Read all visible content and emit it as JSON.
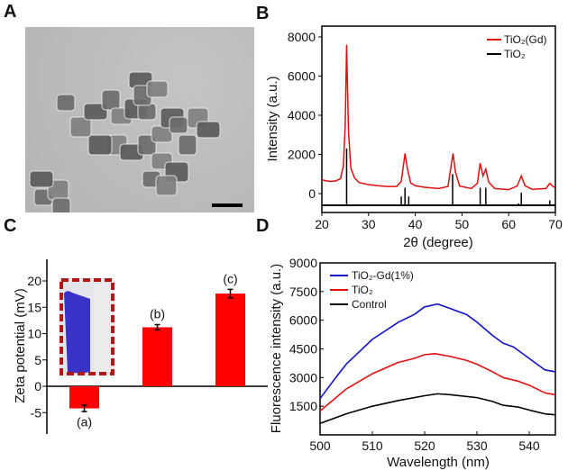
{
  "panels": {
    "a": "A",
    "b": "B",
    "c": "C",
    "d": "D"
  },
  "colors": {
    "red": "#e01010",
    "blue": "#1010c8",
    "black": "#000000",
    "bar": "#ff0000",
    "inset_border": "#b01818"
  },
  "chart_data": [
    {
      "panel": "A",
      "type": "image",
      "content": "TEM micrograph with scale bar"
    },
    {
      "panel": "B",
      "type": "line",
      "xlabel": "2θ (degree)",
      "ylabel": "Intensity (a.u.)",
      "xlim": [
        20,
        70
      ],
      "ylim": [
        -900,
        8800
      ],
      "xticks": [
        20,
        30,
        40,
        50,
        60,
        70
      ],
      "yticks": [
        0,
        2000,
        4000,
        6000,
        8000
      ],
      "legend": "top-right",
      "series": [
        {
          "name": "TiO₂(Gd)",
          "color": "#e01010",
          "points": [
            [
              20,
              700
            ],
            [
              21,
              650
            ],
            [
              22,
              620
            ],
            [
              23,
              650
            ],
            [
              24,
              760
            ],
            [
              24.6,
              1400
            ],
            [
              25,
              3500
            ],
            [
              25.3,
              7600
            ],
            [
              25.7,
              3200
            ],
            [
              26.2,
              1300
            ],
            [
              27,
              800
            ],
            [
              28,
              560
            ],
            [
              30,
              460
            ],
            [
              32,
              400
            ],
            [
              34,
              360
            ],
            [
              36,
              360
            ],
            [
              37,
              620
            ],
            [
              37.5,
              1500
            ],
            [
              37.8,
              2050
            ],
            [
              38.3,
              1300
            ],
            [
              39,
              550
            ],
            [
              40,
              400
            ],
            [
              42,
              320
            ],
            [
              45,
              260
            ],
            [
              47,
              360
            ],
            [
              47.6,
              1300
            ],
            [
              48.1,
              2050
            ],
            [
              48.6,
              1100
            ],
            [
              49.5,
              380
            ],
            [
              52,
              260
            ],
            [
              53.3,
              520
            ],
            [
              53.9,
              1550
            ],
            [
              54.5,
              900
            ],
            [
              55.1,
              1250
            ],
            [
              55.7,
              600
            ],
            [
              57,
              260
            ],
            [
              60,
              200
            ],
            [
              61.8,
              380
            ],
            [
              62.7,
              900
            ],
            [
              63.5,
              400
            ],
            [
              65,
              220
            ],
            [
              68,
              260
            ],
            [
              68.8,
              520
            ],
            [
              69.5,
              360
            ],
            [
              70,
              300
            ]
          ]
        },
        {
          "name": "TiO₂",
          "color": "#000000",
          "type": "stick",
          "baseline": -600,
          "sticks": [
            [
              25.3,
              2300
            ],
            [
              37.0,
              -150
            ],
            [
              37.8,
              300
            ],
            [
              38.6,
              -150
            ],
            [
              48.0,
              1000
            ],
            [
              53.9,
              300
            ],
            [
              55.1,
              300
            ],
            [
              62.1,
              -500
            ],
            [
              62.7,
              50
            ],
            [
              68.8,
              -350
            ]
          ]
        }
      ]
    },
    {
      "panel": "C",
      "type": "bar",
      "ylabel": "Zeta potential (mV)",
      "ylim": [
        -9,
        24
      ],
      "yticks": [
        -5,
        0,
        5,
        10,
        15,
        20
      ],
      "categories": [
        "(a)",
        "(b)",
        "(c)"
      ],
      "values": [
        -4.2,
        11.2,
        17.6
      ],
      "errors": [
        0.6,
        0.5,
        0.8
      ],
      "inset": "vial photograph"
    },
    {
      "panel": "D",
      "type": "line",
      "xlabel": "Wavelength (nm)",
      "ylabel": "Fluorescence intensity (a.u.)",
      "xlim": [
        500,
        545
      ],
      "ylim": [
        0,
        9000
      ],
      "xticks": [
        500,
        510,
        520,
        530,
        540
      ],
      "yticks": [
        1500,
        3000,
        4500,
        6000,
        7500,
        9000
      ],
      "legend": "top-left",
      "series": [
        {
          "name": "TiO₂-Gd(1%)",
          "color": "#1010c8",
          "points": [
            [
              500,
              1900
            ],
            [
              503,
              3000
            ],
            [
              505,
              3700
            ],
            [
              510,
              5000
            ],
            [
              515,
              5900
            ],
            [
              518,
              6300
            ],
            [
              520,
              6700
            ],
            [
              522.5,
              6850
            ],
            [
              525,
              6600
            ],
            [
              528,
              6300
            ],
            [
              530,
              5900
            ],
            [
              533,
              5200
            ],
            [
              535,
              4800
            ],
            [
              537,
              4600
            ],
            [
              540,
              4000
            ],
            [
              543,
              3400
            ],
            [
              545,
              3300
            ]
          ]
        },
        {
          "name": "TiO₂",
          "color": "#e01010",
          "points": [
            [
              500,
              1250
            ],
            [
              505,
              2400
            ],
            [
              510,
              3200
            ],
            [
              515,
              3800
            ],
            [
              518,
              4000
            ],
            [
              520,
              4200
            ],
            [
              522,
              4250
            ],
            [
              525,
              4100
            ],
            [
              528,
              3900
            ],
            [
              530,
              3700
            ],
            [
              533,
              3300
            ],
            [
              535,
              3000
            ],
            [
              538,
              2800
            ],
            [
              540,
              2600
            ],
            [
              543,
              2200
            ],
            [
              545,
              2100
            ]
          ]
        },
        {
          "name": "Control",
          "color": "#000000",
          "points": [
            [
              500,
              600
            ],
            [
              505,
              1100
            ],
            [
              510,
              1500
            ],
            [
              515,
              1800
            ],
            [
              518,
              1950
            ],
            [
              520,
              2050
            ],
            [
              522.5,
              2150
            ],
            [
              525,
              2100
            ],
            [
              530,
              1950
            ],
            [
              533,
              1750
            ],
            [
              535,
              1550
            ],
            [
              538,
              1450
            ],
            [
              540,
              1300
            ],
            [
              543,
              1100
            ],
            [
              545,
              1050
            ]
          ]
        }
      ]
    }
  ]
}
